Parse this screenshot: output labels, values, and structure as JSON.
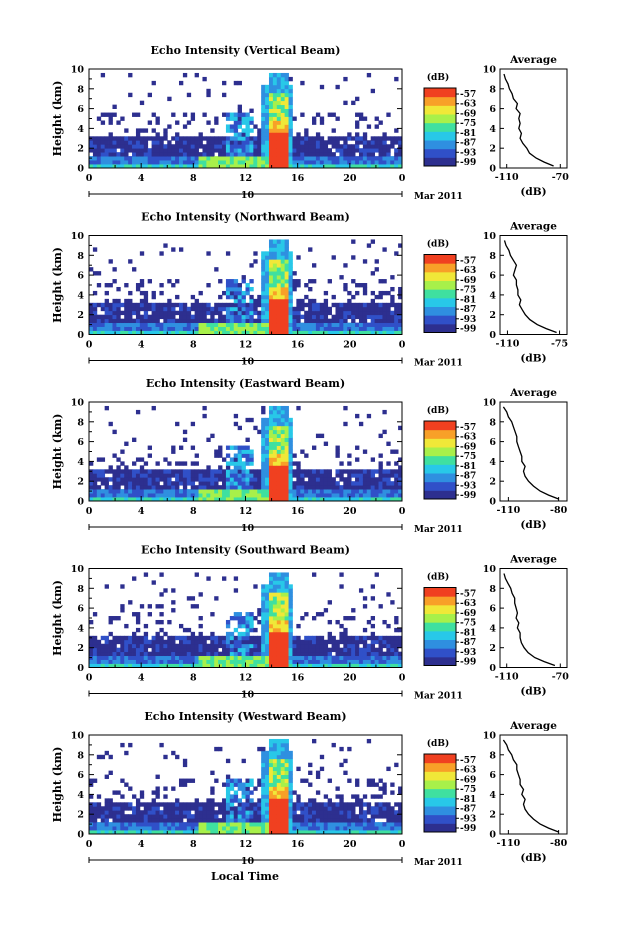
{
  "figure": {
    "xaxis_label": "Local Time",
    "date_label": "Mar 2011",
    "date_tick": "10"
  },
  "chart_data": [
    {
      "type": "heatmap",
      "title": "Echo Intensity (Vertical Beam)",
      "ylabel": "Height (km)",
      "xlabel": "Local Time",
      "xlim": [
        0,
        24
      ],
      "ylim": [
        0,
        10
      ],
      "x_ticks": [
        "0",
        "4",
        "8",
        "12",
        "16",
        "20",
        "0"
      ],
      "y_ticks": [
        "0",
        "2",
        "4",
        "6",
        "8",
        "10"
      ],
      "colorbar": {
        "label": "(dB)",
        "ticks": [
          "-57",
          "-63",
          "-69",
          "-75",
          "-81",
          "-87",
          "-93",
          "-99"
        ]
      },
      "profile": {
        "title": "Average",
        "xlabel": "(dB)",
        "x_ticks": [
          "-110",
          "-70"
        ],
        "xlim": [
          -115,
          -65
        ],
        "heights": [
          0.2,
          0.6,
          1.0,
          1.5,
          2.0,
          2.5,
          3.0,
          3.5,
          4.0,
          4.5,
          5.0,
          5.5,
          6.0,
          6.5,
          7.0,
          7.5,
          8.0,
          8.5,
          9.0,
          9.5
        ],
        "values": [
          -75,
          -82,
          -88,
          -93,
          -95,
          -98,
          -100,
          -99,
          -101,
          -100,
          -101,
          -100,
          -103,
          -102,
          -105,
          -106,
          -108,
          -109,
          -111,
          -112
        ]
      }
    },
    {
      "type": "heatmap",
      "title": "Echo Intensity (Northward Beam)",
      "ylabel": "Height (km)",
      "xlabel": "Local Time",
      "xlim": [
        0,
        24
      ],
      "ylim": [
        0,
        10
      ],
      "x_ticks": [
        "0",
        "4",
        "8",
        "12",
        "16",
        "20",
        "0"
      ],
      "y_ticks": [
        "0",
        "2",
        "4",
        "6",
        "8",
        "10"
      ],
      "colorbar": {
        "label": "(dB)",
        "ticks": [
          "-57",
          "-63",
          "-69",
          "-75",
          "-81",
          "-87",
          "-93",
          "-99"
        ]
      },
      "profile": {
        "title": "Average",
        "xlabel": "(dB)",
        "x_ticks": [
          "-110",
          "-75"
        ],
        "xlim": [
          -115,
          -70
        ],
        "heights": [
          0.2,
          0.6,
          1.0,
          1.5,
          2.0,
          2.5,
          3.0,
          3.5,
          4.0,
          4.5,
          5.0,
          5.5,
          6.0,
          6.5,
          7.0,
          7.5,
          8.0,
          8.5,
          9.0,
          9.5
        ],
        "values": [
          -77,
          -84,
          -90,
          -95,
          -98,
          -100,
          -102,
          -101,
          -103,
          -103,
          -104,
          -104,
          -106,
          -105,
          -104,
          -106,
          -108,
          -109,
          -111,
          -112
        ]
      }
    },
    {
      "type": "heatmap",
      "title": "Echo Intensity (Eastward Beam)",
      "ylabel": "Height (km)",
      "xlabel": "Local Time",
      "xlim": [
        0,
        24
      ],
      "ylim": [
        0,
        10
      ],
      "x_ticks": [
        "0",
        "4",
        "8",
        "12",
        "16",
        "20",
        "0"
      ],
      "y_ticks": [
        "0",
        "2",
        "4",
        "6",
        "8",
        "10"
      ],
      "colorbar": {
        "label": "(dB)",
        "ticks": [
          "-57",
          "-63",
          "-69",
          "-75",
          "-81",
          "-87",
          "-93",
          "-99"
        ]
      },
      "profile": {
        "title": "Average",
        "xlabel": "(dB)",
        "x_ticks": [
          "-110",
          "-80"
        ],
        "xlim": [
          -115,
          -75
        ],
        "heights": [
          0.2,
          0.6,
          1.0,
          1.5,
          2.0,
          2.5,
          3.0,
          3.5,
          4.0,
          4.5,
          5.0,
          5.5,
          6.0,
          6.5,
          7.0,
          7.5,
          8.0,
          8.5,
          9.0,
          9.5
        ],
        "values": [
          -80,
          -86,
          -91,
          -95,
          -98,
          -100,
          -101,
          -100,
          -102,
          -102,
          -103,
          -104,
          -105,
          -105,
          -106,
          -107,
          -108,
          -110,
          -111,
          -113
        ]
      }
    },
    {
      "type": "heatmap",
      "title": "Echo Intensity (Southward Beam)",
      "ylabel": "Height (km)",
      "xlabel": "Local Time",
      "xlim": [
        0,
        24
      ],
      "ylim": [
        0,
        10
      ],
      "x_ticks": [
        "0",
        "4",
        "8",
        "12",
        "16",
        "20",
        "0"
      ],
      "y_ticks": [
        "0",
        "2",
        "4",
        "6",
        "8",
        "10"
      ],
      "colorbar": {
        "label": "(dB)",
        "ticks": [
          "-57",
          "-63",
          "-69",
          "-75",
          "-81",
          "-87",
          "-93",
          "-99"
        ]
      },
      "profile": {
        "title": "Average",
        "xlabel": "(dB)",
        "x_ticks": [
          "-110",
          "-70"
        ],
        "xlim": [
          -115,
          -65
        ],
        "heights": [
          0.2,
          0.6,
          1.0,
          1.5,
          2.0,
          2.5,
          3.0,
          3.5,
          4.0,
          4.5,
          5.0,
          5.5,
          6.0,
          6.5,
          7.0,
          7.5,
          8.0,
          8.5,
          9.0,
          9.5
        ],
        "values": [
          -74,
          -82,
          -89,
          -94,
          -97,
          -99,
          -100,
          -100,
          -102,
          -101,
          -103,
          -102,
          -103,
          -104,
          -104,
          -106,
          -107,
          -109,
          -111,
          -112
        ]
      }
    },
    {
      "type": "heatmap",
      "title": "Echo Intensity (Westward Beam)",
      "ylabel": "Height (km)",
      "xlabel": "Local Time",
      "xlim": [
        0,
        24
      ],
      "ylim": [
        0,
        10
      ],
      "x_ticks": [
        "0",
        "4",
        "8",
        "12",
        "16",
        "20",
        "0"
      ],
      "y_ticks": [
        "0",
        "2",
        "4",
        "6",
        "8",
        "10"
      ],
      "colorbar": {
        "label": "(dB)",
        "ticks": [
          "-57",
          "-63",
          "-69",
          "-75",
          "-81",
          "-87",
          "-93",
          "-99"
        ]
      },
      "profile": {
        "title": "Average",
        "xlabel": "(dB)",
        "x_ticks": [
          "-110",
          "-80"
        ],
        "xlim": [
          -115,
          -75
        ],
        "heights": [
          0.2,
          0.6,
          1.0,
          1.5,
          2.0,
          2.5,
          3.0,
          3.5,
          4.0,
          4.5,
          5.0,
          5.5,
          6.0,
          6.5,
          7.0,
          7.5,
          8.0,
          8.5,
          9.0,
          9.5
        ],
        "values": [
          -80,
          -86,
          -91,
          -95,
          -98,
          -100,
          -101,
          -100,
          -102,
          -101,
          -103,
          -103,
          -104,
          -105,
          -105,
          -107,
          -108,
          -110,
          -111,
          -113
        ]
      }
    }
  ],
  "colors": {
    "scale": [
      "#2d2f8f",
      "#3050c8",
      "#2f8fe0",
      "#28c8e8",
      "#3fe0a0",
      "#a8f04a",
      "#f0e838",
      "#f8a028",
      "#f04020"
    ]
  }
}
